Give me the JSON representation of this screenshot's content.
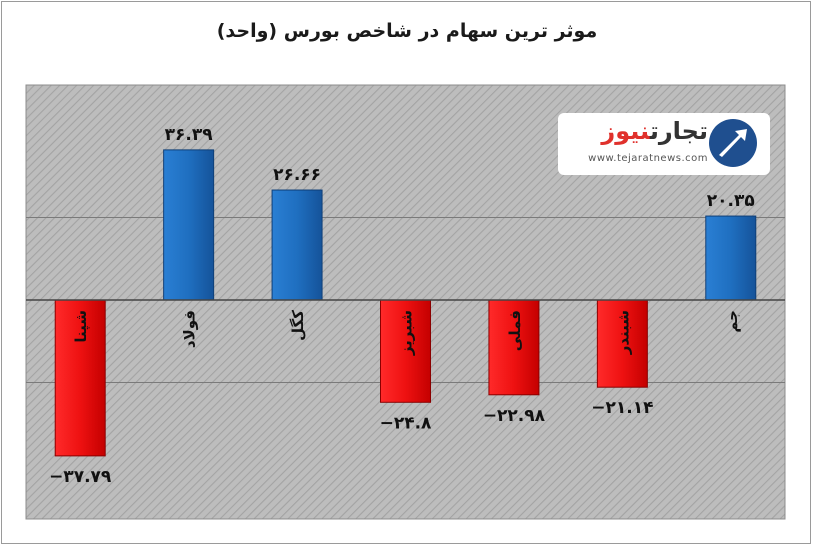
{
  "title": "موثر ترین سهام در شاخص بورس (واحد)",
  "logo": {
    "name_part1": "تجارت",
    "name_part2": "نیوز",
    "url": "www.tejaratnews.com"
  },
  "chart_data": {
    "type": "bar",
    "title": "موثر ترین سهام در شاخص بورس (واحد)",
    "xlabel": "",
    "ylabel": "",
    "grid": true,
    "ylim": [
      -40,
      40
    ],
    "categories": [
      "شپنا",
      "فولاد",
      "کگل",
      "شبریز",
      "فملی",
      "شبندر",
      "جم"
    ],
    "values": [
      -37.79,
      36.39,
      26.66,
      -24.8,
      -22.98,
      -21.14,
      20.35
    ],
    "value_labels": [
      "−۳۷.۷۹",
      "۳۶.۳۹",
      "۲۶.۶۶",
      "−۲۴.۸",
      "−۲۲.۹۸",
      "−۲۱.۱۴",
      "۲۰.۳۵"
    ],
    "colors": {
      "positive": "#1f6fc0",
      "negative": "#ee1111",
      "plot_background": "#b8b8b8",
      "grid": "#7a7a7a"
    }
  }
}
